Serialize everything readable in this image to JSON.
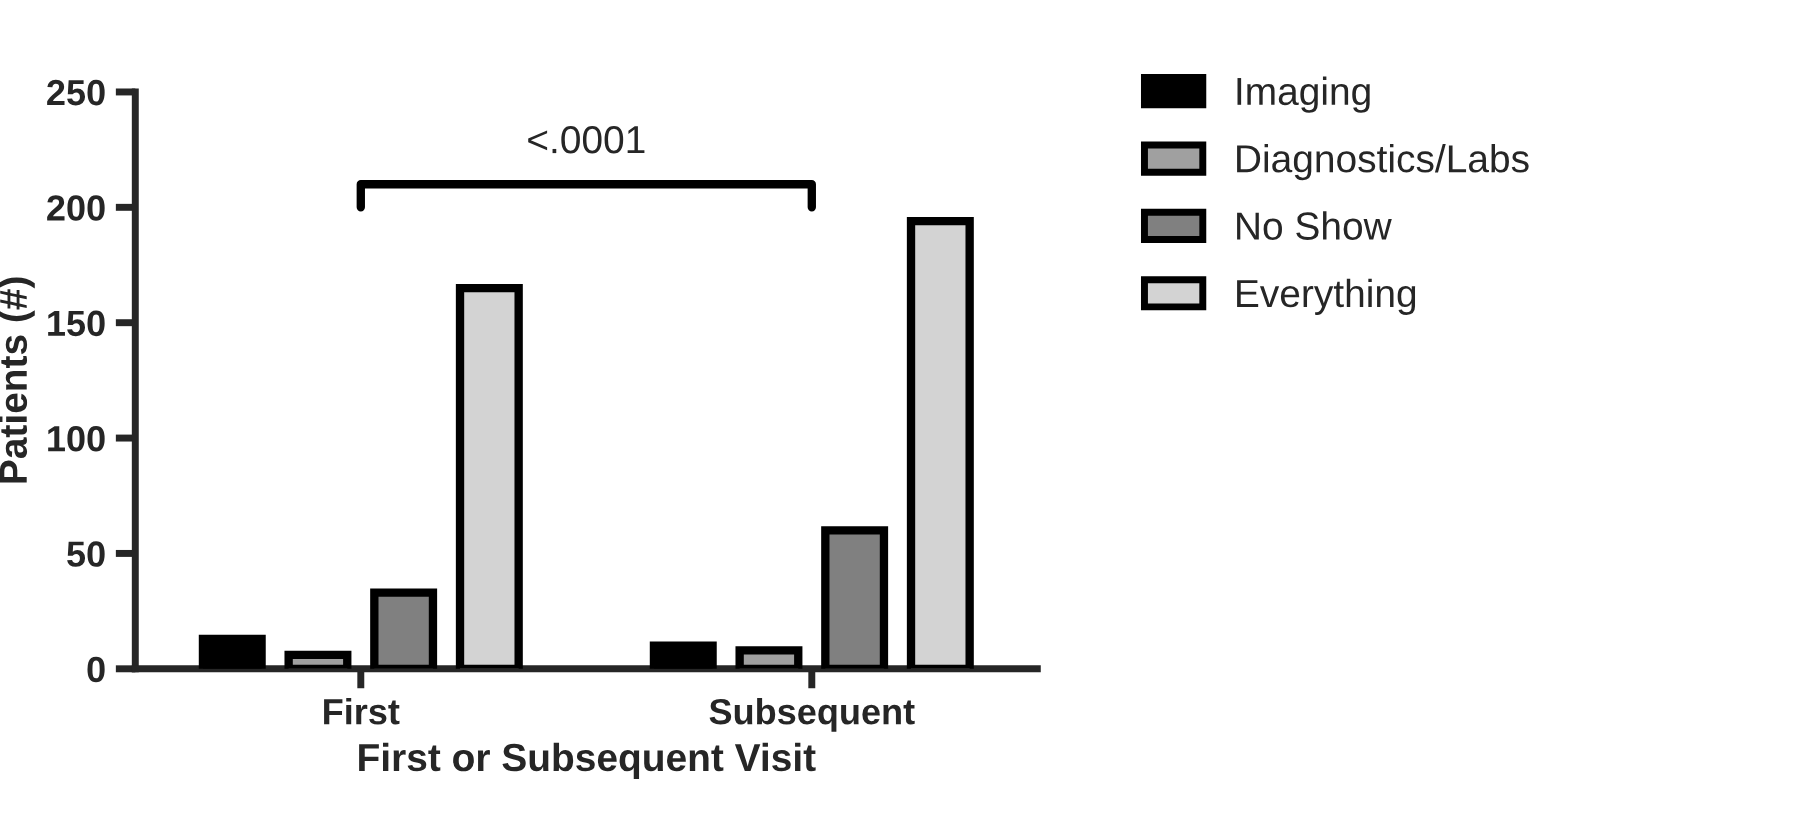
{
  "chart_data": {
    "type": "bar",
    "xlabel": "First or Subsequent Visit",
    "ylabel": "Patients (#)",
    "categories": [
      "First",
      "Subsequent"
    ],
    "series": [
      {
        "name": "Imaging",
        "color": "#000000",
        "values": [
          13,
          10
        ]
      },
      {
        "name": "Diagnostics/Labs",
        "color": "#a0a0a0",
        "values": [
          6,
          8
        ]
      },
      {
        "name": "No Show",
        "color": "#808080",
        "values": [
          33,
          60
        ]
      },
      {
        "name": "Everything",
        "color": "#d3d3d3",
        "values": [
          165,
          194
        ]
      }
    ],
    "ylim": [
      0,
      250
    ],
    "yticks": [
      0,
      50,
      100,
      150,
      200,
      250
    ],
    "annotations": [
      "<.0001"
    ],
    "legend": "right",
    "grid": false
  }
}
